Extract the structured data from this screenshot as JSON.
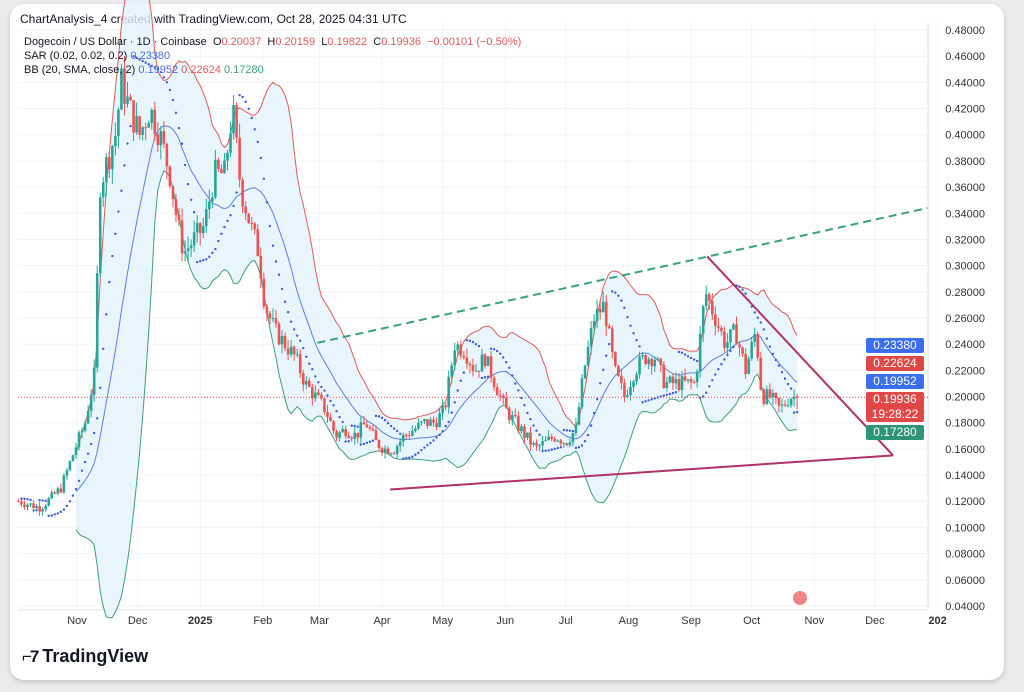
{
  "header": {
    "title": "ChartAnalysis_4 created with TradingView.com, Oct 28, 2025 04:31 UTC"
  },
  "legend": {
    "symbol": "Dogecoin / US Dollar · 1D · Coinbase",
    "o_label": "O",
    "o": "0.20037",
    "h_label": "H",
    "h": "0.20159",
    "l_label": "L",
    "l": "0.19822",
    "c_label": "C",
    "c": "0.19936",
    "change": "−0.00101 (−0.50%)",
    "sar_label": "SAR (0.02, 0.02, 0.2)",
    "sar": "0.23380",
    "bb_label": "BB (20, SMA, close, 2)",
    "bb_mid": "0.19952",
    "bb_up": "0.22624",
    "bb_low": "0.17280"
  },
  "price_tags": {
    "sar": "0.23380",
    "bb_up": "0.22624",
    "bb_mid": "0.19952",
    "last": "0.19936",
    "countdown": "19:28:22",
    "bb_low": "0.17280"
  },
  "colors": {
    "up": "#26a69a",
    "down": "#ef5350",
    "sar": "#3b5bdb",
    "bb_up": "#e05a5a",
    "bb_low": "#3c9f7f",
    "bb_mid": "#5b7ee0",
    "fill": "#e3f2fd",
    "trend_green": "#3c9f7f",
    "triangle": "#b0306a"
  },
  "brand": "TradingView",
  "chart_data": {
    "type": "candlestick",
    "title": "Dogecoin / US Dollar · 1D · Coinbase",
    "x_unit": "days since 2024-11-01",
    "ylim": [
      0.04,
      0.48
    ],
    "y_ticks": [
      "0.48000",
      "0.46000",
      "0.44000",
      "0.42000",
      "0.40000",
      "0.38000",
      "0.36000",
      "0.34000",
      "0.32000",
      "0.30000",
      "0.28000",
      "0.26000",
      "0.24000",
      "0.22000",
      "0.20000",
      "0.18000",
      "0.16000",
      "0.14000",
      "0.12000",
      "0.10000",
      "0.08000",
      "0.06000",
      "0.04000"
    ],
    "x_ticks": [
      {
        "label": "Nov",
        "d": 0
      },
      {
        "label": "Dec",
        "d": 30
      },
      {
        "label": "2025",
        "d": 61
      },
      {
        "label": "Feb",
        "d": 92
      },
      {
        "label": "Mar",
        "d": 120
      },
      {
        "label": "Apr",
        "d": 151
      },
      {
        "label": "May",
        "d": 181
      },
      {
        "label": "Jun",
        "d": 212
      },
      {
        "label": "Jul",
        "d": 242
      },
      {
        "label": "Aug",
        "d": 273
      },
      {
        "label": "Sep",
        "d": 304
      },
      {
        "label": "Oct",
        "d": 334
      },
      {
        "label": "Nov",
        "d": 365
      },
      {
        "label": "Dec",
        "d": 395
      },
      {
        "label": "202",
        "d": 426
      }
    ],
    "close_path": [
      [
        -29,
        0.12
      ],
      [
        -18,
        0.115
      ],
      [
        -8,
        0.13
      ],
      [
        -1,
        0.16
      ],
      [
        4,
        0.18
      ],
      [
        9,
        0.22
      ],
      [
        11,
        0.36
      ],
      [
        15,
        0.38
      ],
      [
        19,
        0.4
      ],
      [
        22,
        0.44
      ],
      [
        26,
        0.42
      ],
      [
        31,
        0.4
      ],
      [
        36,
        0.42
      ],
      [
        41,
        0.4
      ],
      [
        46,
        0.37
      ],
      [
        50,
        0.33
      ],
      [
        53,
        0.31
      ],
      [
        58,
        0.32
      ],
      [
        63,
        0.33
      ],
      [
        68,
        0.37
      ],
      [
        73,
        0.37
      ],
      [
        77,
        0.42
      ],
      [
        81,
        0.36
      ],
      [
        86,
        0.33
      ],
      [
        90,
        0.31
      ],
      [
        93,
        0.27
      ],
      [
        98,
        0.25
      ],
      [
        103,
        0.24
      ],
      [
        108,
        0.23
      ],
      [
        113,
        0.21
      ],
      [
        118,
        0.2
      ],
      [
        123,
        0.19
      ],
      [
        128,
        0.17
      ],
      [
        133,
        0.175
      ],
      [
        138,
        0.17
      ],
      [
        143,
        0.18
      ],
      [
        148,
        0.165
      ],
      [
        152,
        0.16
      ],
      [
        157,
        0.16
      ],
      [
        162,
        0.17
      ],
      [
        167,
        0.175
      ],
      [
        172,
        0.18
      ],
      [
        177,
        0.18
      ],
      [
        182,
        0.19
      ],
      [
        187,
        0.24
      ],
      [
        192,
        0.235
      ],
      [
        197,
        0.22
      ],
      [
        202,
        0.23
      ],
      [
        207,
        0.21
      ],
      [
        212,
        0.19
      ],
      [
        217,
        0.18
      ],
      [
        222,
        0.17
      ],
      [
        227,
        0.16
      ],
      [
        232,
        0.165
      ],
      [
        237,
        0.17
      ],
      [
        242,
        0.165
      ],
      [
        247,
        0.175
      ],
      [
        251,
        0.22
      ],
      [
        256,
        0.26
      ],
      [
        261,
        0.27
      ],
      [
        266,
        0.22
      ],
      [
        271,
        0.2
      ],
      [
        276,
        0.22
      ],
      [
        281,
        0.23
      ],
      [
        286,
        0.23
      ],
      [
        291,
        0.21
      ],
      [
        296,
        0.21
      ],
      [
        301,
        0.21
      ],
      [
        306,
        0.21
      ],
      [
        311,
        0.28
      ],
      [
        316,
        0.26
      ],
      [
        321,
        0.24
      ],
      [
        326,
        0.25
      ],
      [
        331,
        0.22
      ],
      [
        336,
        0.25
      ],
      [
        339,
        0.2
      ],
      [
        343,
        0.2
      ],
      [
        348,
        0.19
      ],
      [
        353,
        0.2
      ],
      [
        357,
        0.19936
      ]
    ],
    "annotations": [
      {
        "type": "dashed-trendline",
        "from": [
          119,
          0.241
        ],
        "to": [
          421,
          0.344
        ]
      },
      {
        "type": "triangle-upper",
        "from": [
          312,
          0.307
        ],
        "to": [
          404,
          0.155
        ]
      },
      {
        "type": "triangle-lower",
        "from": [
          155,
          0.129
        ],
        "to": [
          404,
          0.155
        ]
      }
    ],
    "last_price": 0.19936
  }
}
